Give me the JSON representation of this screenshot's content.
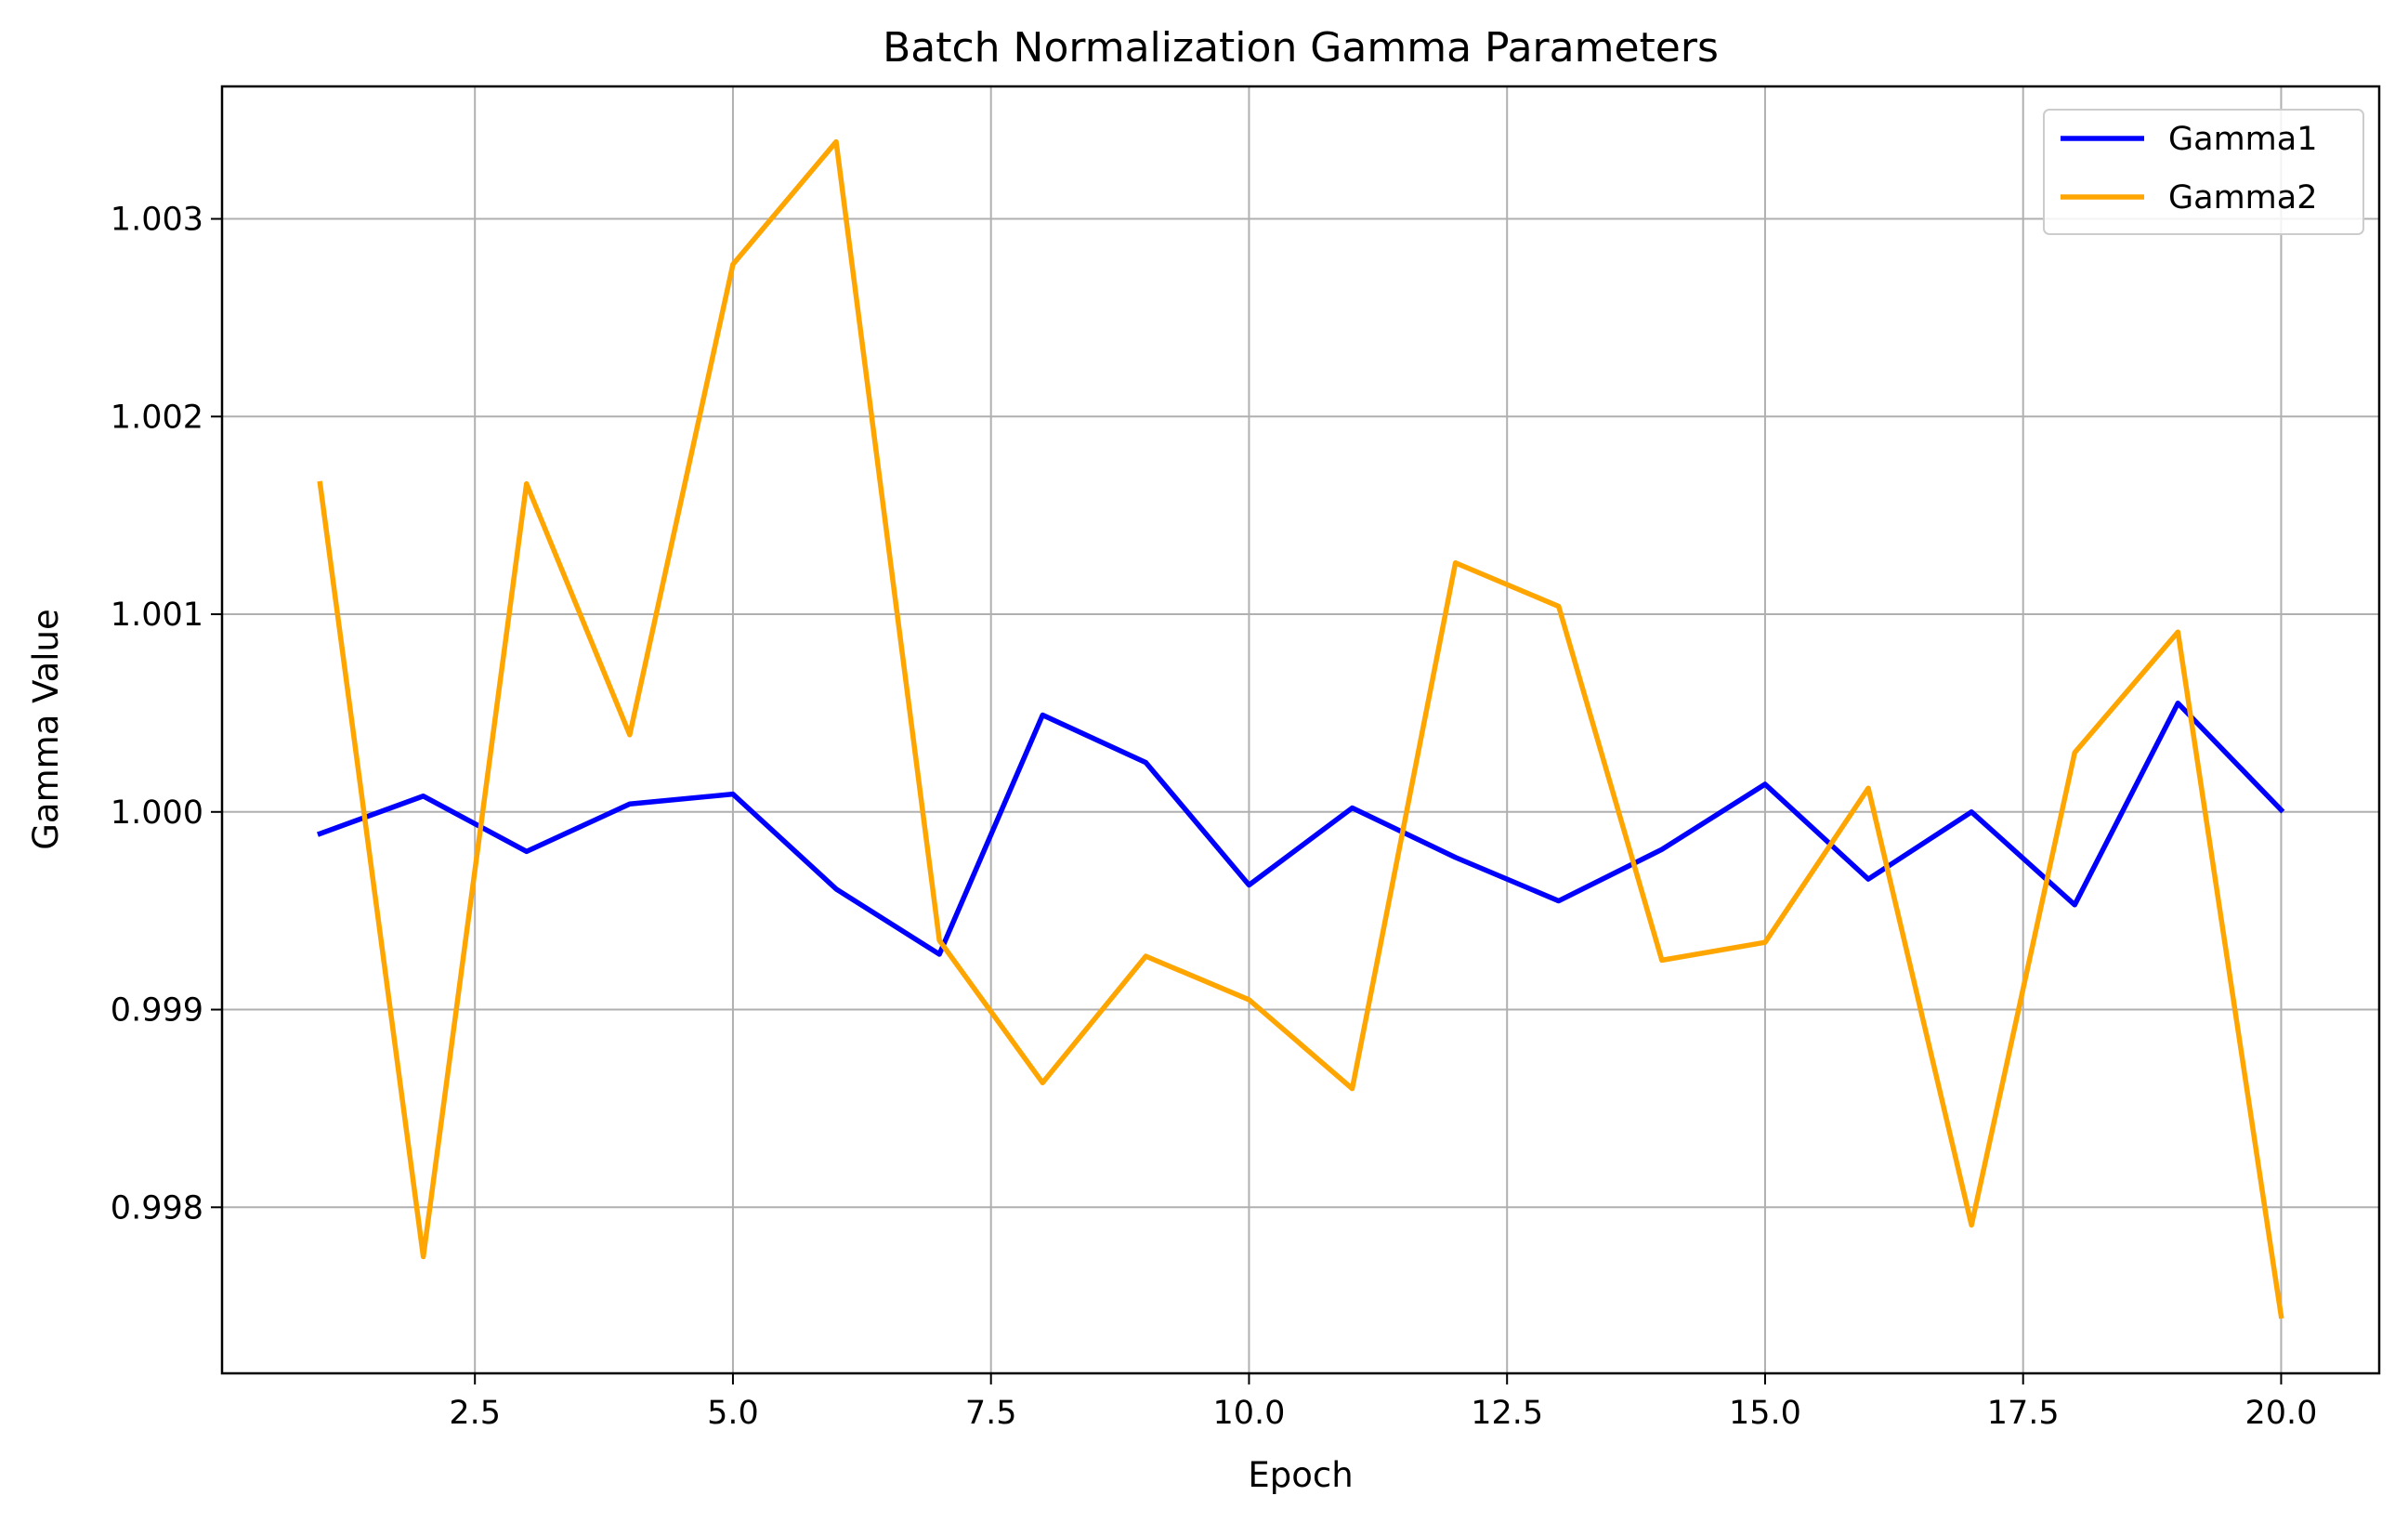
{
  "chart_data": {
    "type": "line",
    "title": "Batch Normalization Gamma Parameters",
    "xlabel": "Epoch",
    "ylabel": "Gamma Value",
    "x": [
      1,
      2,
      3,
      4,
      5,
      6,
      7,
      8,
      9,
      10,
      11,
      12,
      13,
      14,
      15,
      16,
      17,
      18,
      19,
      20
    ],
    "xlim": [
      0.05,
      20.95
    ],
    "ylim": [
      0.99716,
      1.00367
    ],
    "xticks": [
      2.5,
      5.0,
      7.5,
      10.0,
      12.5,
      15.0,
      17.5,
      20.0
    ],
    "xtick_labels": [
      "2.5",
      "5.0",
      "7.5",
      "10.0",
      "12.5",
      "15.0",
      "17.5",
      "20.0"
    ],
    "yticks": [
      0.998,
      0.999,
      1.0,
      1.001,
      1.002,
      1.003
    ],
    "ytick_labels": [
      "0.998",
      "0.999",
      "1.000",
      "1.001",
      "1.002",
      "1.003"
    ],
    "grid": true,
    "legend_position": "top-right",
    "series": [
      {
        "name": "Gamma1",
        "color": "#0000ff",
        "values": [
          0.99989,
          1.00008,
          0.9998,
          1.00004,
          1.00009,
          0.99961,
          0.99928,
          1.00049,
          1.00025,
          0.99963,
          1.00002,
          0.99977,
          0.99955,
          0.99981,
          1.00014,
          0.99966,
          1.0,
          0.99953,
          1.00055,
          1.00001
        ]
      },
      {
        "name": "Gamma2",
        "color": "#ffa500",
        "values": [
          1.00166,
          0.99775,
          1.00166,
          1.00039,
          1.00277,
          1.00339,
          0.99935,
          0.99863,
          0.99927,
          0.99905,
          0.9986,
          1.00126,
          1.00104,
          0.99925,
          0.99934,
          1.00012,
          0.99791,
          1.0003,
          1.00091,
          0.99745
        ]
      }
    ]
  }
}
